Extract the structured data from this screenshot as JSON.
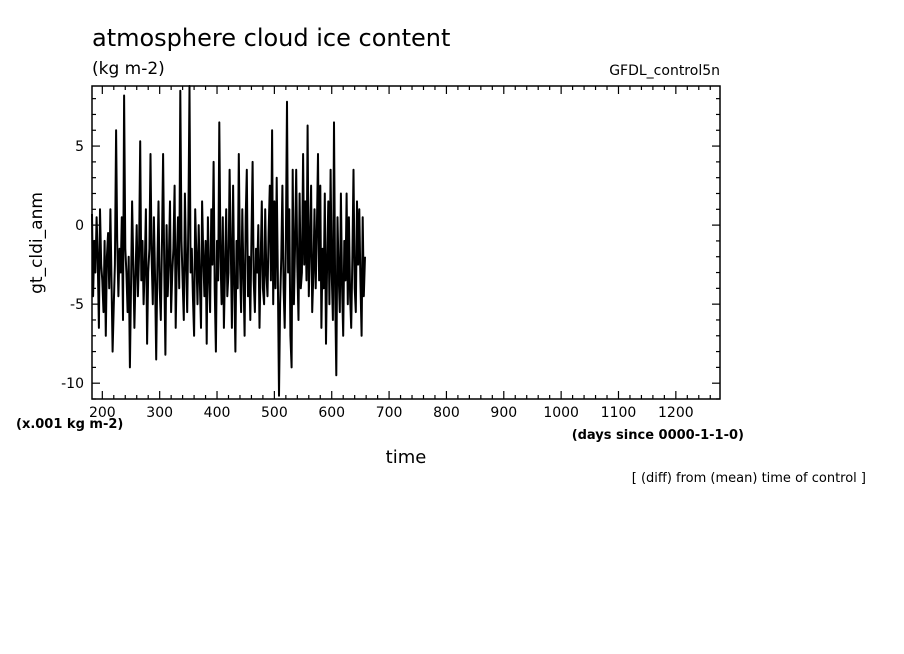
{
  "chart_data": {
    "type": "line",
    "title": "atmosphere cloud ice content",
    "subtitle": "(kg m-2)",
    "source_label": "GFDL_control5n",
    "xlabel": "time",
    "x_units": "(days since 0000-1-1-0)",
    "ylabel": "gt_cldi_anm",
    "y_units": "(x.001 kg m-2)",
    "note": "[ (diff) from (mean) time of control ]",
    "xlim": [
      182,
      1277
    ],
    "ylim": [
      -11,
      8.8
    ],
    "x_ticks": [
      200,
      300,
      400,
      500,
      600,
      700,
      800,
      900,
      1000,
      1100,
      1200
    ],
    "x_tick_labels": [
      "200",
      "300",
      "400",
      "500",
      "600",
      "700",
      "800",
      "900",
      "1000",
      "1100",
      "1200"
    ],
    "y_ticks": [
      -10,
      -5,
      0,
      5
    ],
    "y_tick_labels": [
      "-10",
      "-5",
      "0",
      "5"
    ],
    "line_color": "#000000",
    "series": [
      {
        "x_start": 182,
        "x_step": 2,
        "values": [
          0.7,
          -4.5,
          -1.0,
          -3.0,
          0.5,
          -2.0,
          -6.5,
          1.0,
          -2.5,
          -3.5,
          -5.5,
          -1.0,
          -7.0,
          -2.0,
          -0.5,
          -4.0,
          1.0,
          -3.5,
          -8.0,
          -5.0,
          -2.5,
          6.0,
          -1.0,
          -4.5,
          -1.5,
          -3.0,
          0.5,
          -6.0,
          8.2,
          -1.5,
          -3.0,
          -5.5,
          -2.0,
          -9.0,
          -4.0,
          1.5,
          -2.5,
          -6.5,
          -3.0,
          0.0,
          -4.5,
          -2.0,
          5.3,
          -3.5,
          -1.0,
          -5.0,
          -2.5,
          1.0,
          -7.5,
          -3.0,
          -1.5,
          4.5,
          -2.0,
          -5.0,
          0.5,
          -3.5,
          -8.5,
          -2.5,
          1.5,
          -4.0,
          -6.0,
          -1.0,
          4.5,
          -3.0,
          -8.2,
          0.0,
          -4.5,
          -2.0,
          1.5,
          -5.5,
          -3.0,
          -1.5,
          2.5,
          -6.5,
          -2.0,
          0.5,
          -4.0,
          8.5,
          -1.0,
          -3.5,
          -6.0,
          2.0,
          -2.5,
          -5.5,
          0.5,
          8.8,
          -3.0,
          -1.5,
          -4.5,
          -7.0,
          1.0,
          -2.0,
          -5.0,
          0.0,
          -3.5,
          -6.5,
          1.5,
          -2.0,
          -4.5,
          -1.0,
          -7.5,
          0.5,
          -3.0,
          -5.5,
          1.0,
          -2.5,
          4.0,
          -4.0,
          -8.0,
          -1.0,
          -3.5,
          6.5,
          -2.0,
          -5.0,
          0.5,
          -6.5,
          -2.5,
          1.0,
          -4.5,
          -3.0,
          3.5,
          -1.5,
          -6.5,
          2.5,
          -3.5,
          -8.0,
          -1.0,
          -4.0,
          4.5,
          -2.5,
          -5.5,
          1.0,
          -3.0,
          -7.0,
          0.5,
          3.5,
          -4.5,
          -2.0,
          -6.0,
          -1.0,
          4.0,
          -3.5,
          -5.5,
          -1.5,
          -3.0,
          0.0,
          -6.5,
          -2.5,
          1.5,
          -4.0,
          -5.0,
          1.0,
          -3.0,
          -4.5,
          -0.5,
          2.5,
          -3.5,
          6.0,
          -5.0,
          1.5,
          -4.0,
          3.0,
          -3.0,
          -10.8,
          -5.0,
          -2.0,
          2.5,
          -4.0,
          -6.5,
          -1.5,
          7.8,
          -3.0,
          1.0,
          -7.0,
          -9.0,
          3.5,
          -5.0,
          -1.5,
          3.5,
          -2.5,
          -6.0,
          2.0,
          -4.0,
          -3.0,
          4.5,
          -2.5,
          1.5,
          -3.5,
          6.3,
          -4.5,
          -1.5,
          2.5,
          -5.5,
          -3.0,
          1.0,
          -4.0,
          -0.5,
          4.5,
          -3.5,
          2.5,
          -6.5,
          -1.5,
          -4.0,
          2.0,
          -7.5,
          -2.5,
          1.5,
          -5.0,
          3.5,
          -3.0,
          -6.0,
          6.5,
          -4.5,
          -9.5,
          0.5,
          -3.0,
          -5.5,
          2.0,
          -4.0,
          -7.0,
          -1.0,
          -3.5,
          2.0,
          -5.0,
          0.5,
          -4.5,
          -6.5,
          -2.0,
          3.5,
          -4.0,
          -5.5,
          1.5,
          -2.5,
          1.0,
          -3.5,
          -7.0,
          0.5,
          -4.5,
          -2.0
        ]
      }
    ]
  }
}
